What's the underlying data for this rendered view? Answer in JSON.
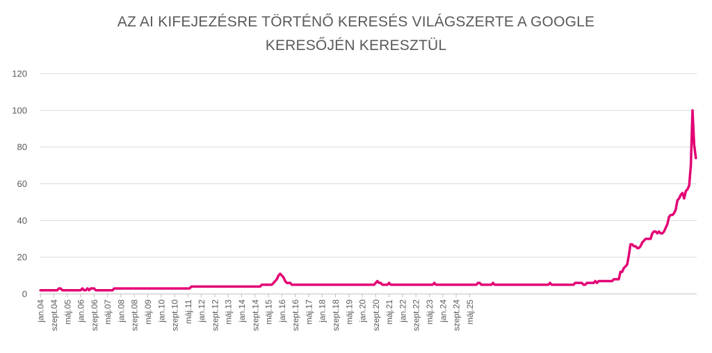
{
  "chart_data": {
    "type": "line",
    "title_line1": "AZ AI KIFEJEZÉSRE TÖRTÉNŐ KERESÉS VILÁGSZERTE A GOOGLE",
    "title_line2": "KERESŐJÉN KERESZTÜL",
    "xlabel": "",
    "ylabel": "",
    "ylim": [
      0,
      120
    ],
    "yticks": [
      0,
      20,
      40,
      60,
      80,
      100,
      120
    ],
    "grid": true,
    "line_color": "#e20074",
    "x_tick_labels": [
      "jan.04",
      "szept.04",
      "máj.05",
      "jan.06",
      "szept.06",
      "máj.07",
      "jan.08",
      "szept.08",
      "máj.09",
      "jan.10",
      "szept.10",
      "máj.11",
      "jan.12",
      "szept.12",
      "máj.13",
      "jan.14",
      "szept.14",
      "máj.15",
      "jan.16",
      "szept.16",
      "máj.17",
      "jan.18",
      "szept.18",
      "máj.19",
      "jan.20",
      "szept.20",
      "máj.21",
      "jan.22",
      "szept.22",
      "máj.23",
      "jan.24",
      "szept.24",
      "máj.25"
    ],
    "series": [
      {
        "values": [
          2,
          2,
          2,
          2,
          2,
          2,
          2,
          2,
          2,
          2,
          2,
          3,
          3,
          2,
          2,
          2,
          2,
          2,
          2,
          2,
          2,
          2,
          2,
          2,
          2,
          3,
          2,
          2,
          3,
          2,
          3,
          3,
          3,
          2,
          2,
          2,
          2,
          2,
          2,
          2,
          2,
          2,
          2,
          2,
          3,
          3,
          3,
          3,
          3,
          3,
          3,
          3,
          3,
          3,
          3,
          3,
          3,
          3,
          3,
          3,
          3,
          3,
          3,
          3,
          3,
          3,
          3,
          3,
          3,
          3,
          3,
          3,
          3,
          3,
          3,
          3,
          3,
          3,
          3,
          3,
          3,
          3,
          3,
          3,
          3,
          3,
          3,
          3,
          3,
          3,
          4,
          4,
          4,
          4,
          4,
          4,
          4,
          4,
          4,
          4,
          4,
          4,
          4,
          4,
          4,
          4,
          4,
          4,
          4,
          4,
          4,
          4,
          4,
          4,
          4,
          4,
          4,
          4,
          4,
          4,
          4,
          4,
          4,
          4,
          4,
          4,
          4,
          4,
          4,
          4,
          4,
          4,
          5,
          5,
          5,
          5,
          5,
          5,
          5,
          6,
          7,
          8,
          10,
          11,
          10,
          9,
          7,
          6,
          6,
          6,
          5,
          5,
          5,
          5,
          5,
          5,
          5,
          5,
          5,
          5,
          5,
          5,
          5,
          5,
          5,
          5,
          5,
          5,
          5,
          5,
          5,
          5,
          5,
          5,
          5,
          5,
          5,
          5,
          5,
          5,
          5,
          5,
          5,
          5,
          5,
          5,
          5,
          5,
          5,
          5,
          5,
          5,
          5,
          5,
          5,
          5,
          5,
          5,
          5,
          5,
          6,
          7,
          6,
          6,
          5,
          5,
          5,
          5,
          6,
          5,
          5,
          5,
          5,
          5,
          5,
          5,
          5,
          5,
          5,
          5,
          5,
          5,
          5,
          5,
          5,
          5,
          5,
          5,
          5,
          5,
          5,
          5,
          5,
          5,
          5,
          6,
          5,
          5,
          5,
          5,
          5,
          5,
          5,
          5,
          5,
          5,
          5,
          5,
          5,
          5,
          5,
          5,
          5,
          5,
          5,
          5,
          5,
          5,
          5,
          5,
          5,
          6,
          6,
          5,
          5,
          5,
          5,
          5,
          5,
          5,
          6,
          5,
          5,
          5,
          5,
          5,
          5,
          5,
          5,
          5,
          5,
          5,
          5,
          5,
          5,
          5,
          5,
          5,
          5,
          5,
          5,
          5,
          5,
          5,
          5,
          5,
          5,
          5,
          5,
          5,
          5,
          5,
          5,
          5,
          6,
          5,
          5,
          5,
          5,
          5,
          5,
          5,
          5,
          5,
          5,
          5,
          5,
          5,
          5,
          6,
          6,
          6,
          6,
          6,
          5,
          5,
          6,
          6,
          6,
          6,
          6,
          7,
          6,
          7,
          7,
          7,
          7,
          7,
          7,
          7,
          7,
          7,
          8,
          8,
          8,
          8,
          12,
          12,
          14,
          15,
          16,
          21,
          27,
          27,
          26,
          26,
          25,
          25,
          26,
          28,
          29,
          30,
          30,
          30,
          30,
          33,
          34,
          34,
          33,
          34,
          33,
          33,
          34,
          36,
          38,
          42,
          43,
          43,
          44,
          46,
          51,
          52,
          54,
          55,
          52,
          56,
          57,
          59,
          70,
          100,
          81,
          74
        ]
      }
    ]
  }
}
